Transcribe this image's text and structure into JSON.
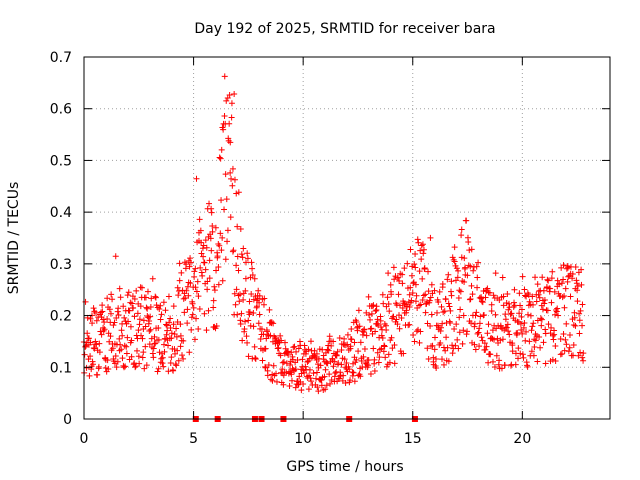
{
  "chart_data": {
    "type": "scatter",
    "title": "Day 192 of 2025, SRMTID for receiver bara",
    "xlabel": "GPS time / hours",
    "ylabel": "SRMTID / TECUs",
    "xlim": [
      0,
      24
    ],
    "ylim": [
      0,
      0.7
    ],
    "xticks": [
      0,
      5,
      10,
      15,
      20
    ],
    "yticks": [
      0,
      0.1,
      0.2,
      0.3,
      0.4,
      0.5,
      0.6,
      0.7
    ],
    "grid": true,
    "marker": "+",
    "color": "#ff0000",
    "baseline_markers_x": [
      5.1,
      6.1,
      7.8,
      8.1,
      9.1,
      12.1,
      15.1
    ],
    "series": [
      {
        "name": "SRMTID",
        "profile": [
          [
            0.0,
            0.13
          ],
          [
            0.5,
            0.15
          ],
          [
            1.0,
            0.16
          ],
          [
            1.5,
            0.17
          ],
          [
            2.0,
            0.17
          ],
          [
            2.5,
            0.18
          ],
          [
            3.0,
            0.17
          ],
          [
            3.5,
            0.16
          ],
          [
            4.0,
            0.16
          ],
          [
            4.5,
            0.2
          ],
          [
            5.0,
            0.25
          ],
          [
            5.5,
            0.3
          ],
          [
            6.0,
            0.27
          ],
          [
            6.3,
            0.4
          ],
          [
            6.6,
            0.45
          ],
          [
            7.0,
            0.28
          ],
          [
            7.5,
            0.22
          ],
          [
            8.0,
            0.19
          ],
          [
            8.5,
            0.14
          ],
          [
            9.0,
            0.11
          ],
          [
            9.5,
            0.1
          ],
          [
            10.0,
            0.1
          ],
          [
            10.5,
            0.09
          ],
          [
            11.0,
            0.1
          ],
          [
            11.5,
            0.11
          ],
          [
            12.0,
            0.11
          ],
          [
            12.5,
            0.14
          ],
          [
            13.0,
            0.15
          ],
          [
            13.5,
            0.17
          ],
          [
            14.0,
            0.18
          ],
          [
            14.5,
            0.21
          ],
          [
            15.0,
            0.24
          ],
          [
            15.5,
            0.24
          ],
          [
            16.0,
            0.17
          ],
          [
            16.5,
            0.18
          ],
          [
            17.0,
            0.24
          ],
          [
            17.5,
            0.27
          ],
          [
            18.0,
            0.21
          ],
          [
            18.5,
            0.17
          ],
          [
            19.0,
            0.17
          ],
          [
            19.5,
            0.18
          ],
          [
            20.0,
            0.17
          ],
          [
            20.5,
            0.19
          ],
          [
            21.0,
            0.19
          ],
          [
            21.5,
            0.2
          ],
          [
            22.0,
            0.21
          ],
          [
            22.5,
            0.22
          ],
          [
            22.8,
            0.2
          ]
        ]
      }
    ]
  }
}
